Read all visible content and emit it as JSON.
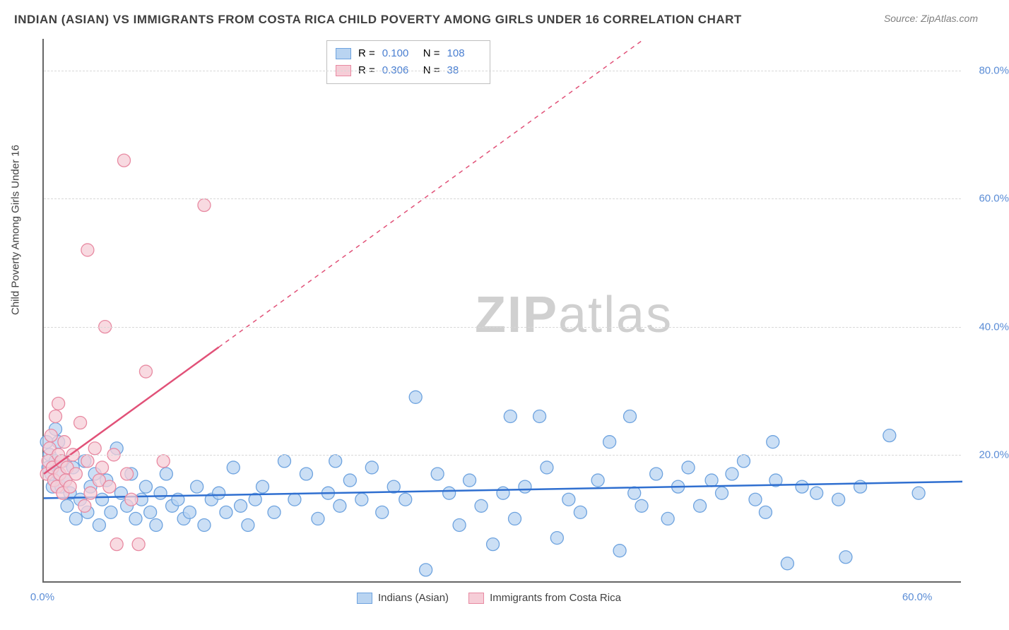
{
  "title": "INDIAN (ASIAN) VS IMMIGRANTS FROM COSTA RICA CHILD POVERTY AMONG GIRLS UNDER 16 CORRELATION CHART",
  "source": "Source: ZipAtlas.com",
  "y_axis_label": "Child Poverty Among Girls Under 16",
  "watermark": {
    "bold": "ZIP",
    "rest": "atlas"
  },
  "chart": {
    "type": "scatter",
    "background_color": "#ffffff",
    "grid_color": "#d8d8d8",
    "axis_color": "#666666",
    "tick_label_color": "#5b8dd6",
    "xlim": [
      0,
      63
    ],
    "ylim": [
      0,
      85
    ],
    "y_ticks": [
      20,
      40,
      60,
      80
    ],
    "y_tick_labels": [
      "20.0%",
      "40.0%",
      "60.0%",
      "80.0%"
    ],
    "x_ticks": [
      0,
      60
    ],
    "x_tick_labels": [
      "0.0%",
      "60.0%"
    ],
    "marker_radius": 9,
    "marker_stroke_width": 1.3,
    "trend_line_width": 2.5,
    "series": [
      {
        "id": "indians",
        "label": "Indians (Asian)",
        "fill_color": "#b9d4f1",
        "stroke_color": "#6ea3df",
        "trend_color": "#2f6fd0",
        "R": "0.100",
        "N": "108",
        "trend": {
          "x1": 0,
          "y1": 13.2,
          "x2": 63,
          "y2": 15.8,
          "dashed_from_x": null
        },
        "points": [
          [
            0.2,
            22
          ],
          [
            0.3,
            18
          ],
          [
            0.4,
            20
          ],
          [
            0.5,
            17
          ],
          [
            0.6,
            15
          ],
          [
            0.8,
            24
          ],
          [
            0.8,
            19
          ],
          [
            1.0,
            17
          ],
          [
            1.0,
            22
          ],
          [
            1.2,
            15
          ],
          [
            1.3,
            19
          ],
          [
            1.5,
            16
          ],
          [
            1.6,
            12
          ],
          [
            1.8,
            14
          ],
          [
            2.0,
            18
          ],
          [
            2.2,
            10
          ],
          [
            2.5,
            13
          ],
          [
            2.8,
            19
          ],
          [
            3.0,
            11
          ],
          [
            3.2,
            15
          ],
          [
            3.5,
            17
          ],
          [
            3.8,
            9
          ],
          [
            4.0,
            13
          ],
          [
            4.3,
            16
          ],
          [
            4.6,
            11
          ],
          [
            5.0,
            21
          ],
          [
            5.3,
            14
          ],
          [
            5.7,
            12
          ],
          [
            6.0,
            17
          ],
          [
            6.3,
            10
          ],
          [
            6.7,
            13
          ],
          [
            7.0,
            15
          ],
          [
            7.3,
            11
          ],
          [
            7.7,
            9
          ],
          [
            8.0,
            14
          ],
          [
            8.4,
            17
          ],
          [
            8.8,
            12
          ],
          [
            9.2,
            13
          ],
          [
            9.6,
            10
          ],
          [
            10.0,
            11
          ],
          [
            10.5,
            15
          ],
          [
            11.0,
            9
          ],
          [
            11.5,
            13
          ],
          [
            12.0,
            14
          ],
          [
            12.5,
            11
          ],
          [
            13.0,
            18
          ],
          [
            13.5,
            12
          ],
          [
            14.0,
            9
          ],
          [
            14.5,
            13
          ],
          [
            15.0,
            15
          ],
          [
            15.8,
            11
          ],
          [
            16.5,
            19
          ],
          [
            17.2,
            13
          ],
          [
            18.0,
            17
          ],
          [
            18.8,
            10
          ],
          [
            19.5,
            14
          ],
          [
            20.0,
            19
          ],
          [
            20.3,
            12
          ],
          [
            21.0,
            16
          ],
          [
            21.8,
            13
          ],
          [
            22.5,
            18
          ],
          [
            23.2,
            11
          ],
          [
            24.0,
            15
          ],
          [
            24.8,
            13
          ],
          [
            25.5,
            29
          ],
          [
            26.2,
            2
          ],
          [
            27.0,
            17
          ],
          [
            27.8,
            14
          ],
          [
            28.5,
            9
          ],
          [
            29.2,
            16
          ],
          [
            30.0,
            12
          ],
          [
            30.8,
            6
          ],
          [
            31.5,
            14
          ],
          [
            32.0,
            26
          ],
          [
            32.3,
            10
          ],
          [
            33.0,
            15
          ],
          [
            34.0,
            26
          ],
          [
            34.5,
            18
          ],
          [
            35.2,
            7
          ],
          [
            36.0,
            13
          ],
          [
            36.8,
            11
          ],
          [
            38.0,
            16
          ],
          [
            38.8,
            22
          ],
          [
            39.5,
            5
          ],
          [
            40.2,
            26
          ],
          [
            40.5,
            14
          ],
          [
            41.0,
            12
          ],
          [
            42.0,
            17
          ],
          [
            42.8,
            10
          ],
          [
            43.5,
            15
          ],
          [
            44.2,
            18
          ],
          [
            45.0,
            12
          ],
          [
            45.8,
            16
          ],
          [
            46.5,
            14
          ],
          [
            47.2,
            17
          ],
          [
            48.0,
            19
          ],
          [
            48.8,
            13
          ],
          [
            49.5,
            11
          ],
          [
            50.0,
            22
          ],
          [
            50.2,
            16
          ],
          [
            51.0,
            3
          ],
          [
            52.0,
            15
          ],
          [
            53.0,
            14
          ],
          [
            54.5,
            13
          ],
          [
            55.0,
            4
          ],
          [
            56.0,
            15
          ],
          [
            58.0,
            23
          ],
          [
            60.0,
            14
          ]
        ]
      },
      {
        "id": "costa_rica",
        "label": "Immigrants from Costa Rica",
        "fill_color": "#f6cdd7",
        "stroke_color": "#e88aa2",
        "trend_color": "#e15178",
        "R": "0.306",
        "N": "38",
        "trend": {
          "x1": 0,
          "y1": 17,
          "x2": 63,
          "y2": 121,
          "dashed_from_x": 12
        },
        "points": [
          [
            0.2,
            17
          ],
          [
            0.3,
            19
          ],
          [
            0.4,
            21
          ],
          [
            0.5,
            23
          ],
          [
            0.6,
            18
          ],
          [
            0.7,
            16
          ],
          [
            0.8,
            26
          ],
          [
            0.9,
            15
          ],
          [
            1.0,
            20
          ],
          [
            1.0,
            28
          ],
          [
            1.1,
            17
          ],
          [
            1.2,
            19
          ],
          [
            1.3,
            14
          ],
          [
            1.4,
            22
          ],
          [
            1.5,
            16
          ],
          [
            1.6,
            18
          ],
          [
            1.8,
            15
          ],
          [
            2.0,
            20
          ],
          [
            2.2,
            17
          ],
          [
            2.5,
            25
          ],
          [
            2.8,
            12
          ],
          [
            3.0,
            19
          ],
          [
            3.0,
            52
          ],
          [
            3.2,
            14
          ],
          [
            3.5,
            21
          ],
          [
            3.8,
            16
          ],
          [
            4.0,
            18
          ],
          [
            4.2,
            40
          ],
          [
            4.5,
            15
          ],
          [
            4.8,
            20
          ],
          [
            5.0,
            6
          ],
          [
            5.5,
            66
          ],
          [
            5.7,
            17
          ],
          [
            6.0,
            13
          ],
          [
            6.5,
            6
          ],
          [
            7.0,
            33
          ],
          [
            8.2,
            19
          ],
          [
            11.0,
            59
          ]
        ]
      }
    ]
  },
  "top_legend": {
    "rows": [
      {
        "swatch_fill": "#b9d4f1",
        "swatch_stroke": "#6ea3df",
        "R": "0.100",
        "N": "108"
      },
      {
        "swatch_fill": "#f6cdd7",
        "swatch_stroke": "#e88aa2",
        "R": "0.306",
        "N": "38"
      }
    ]
  },
  "bottom_legend": {
    "items": [
      {
        "swatch_fill": "#b9d4f1",
        "swatch_stroke": "#6ea3df",
        "label": "Indians (Asian)"
      },
      {
        "swatch_fill": "#f6cdd7",
        "swatch_stroke": "#e88aa2",
        "label": "Immigrants from Costa Rica"
      }
    ]
  }
}
